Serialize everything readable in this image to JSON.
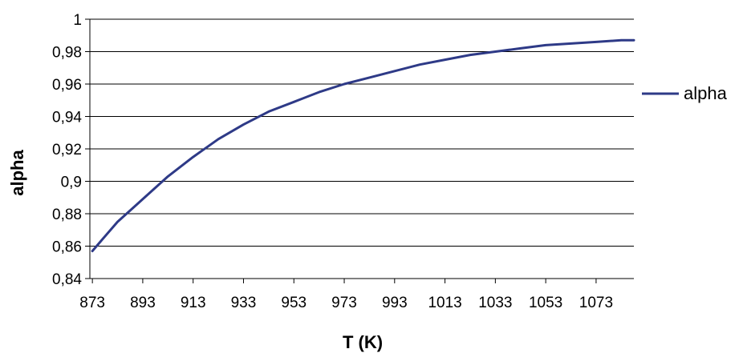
{
  "chart_data": {
    "type": "line",
    "title": "",
    "xlabel": "T (K)",
    "ylabel": "alpha",
    "xlim": [
      872,
      1088
    ],
    "ylim": [
      0.84,
      1.0
    ],
    "x_ticks": [
      873,
      893,
      913,
      933,
      953,
      973,
      993,
      1013,
      1033,
      1053,
      1073
    ],
    "x_tick_labels": [
      "873",
      "893",
      "913",
      "933",
      "953",
      "973",
      "993",
      "1013",
      "1033",
      "1053",
      "1073"
    ],
    "y_ticks": [
      0.84,
      0.86,
      0.88,
      0.9,
      0.92,
      0.94,
      0.96,
      0.98,
      1.0
    ],
    "y_tick_labels": [
      "0,84",
      "0,86",
      "0,88",
      "0,9",
      "0,92",
      "0,94",
      "0,96",
      "0,98",
      "1"
    ],
    "grid": "horizontal",
    "legend": {
      "position": "right",
      "entries": [
        "alpha"
      ]
    },
    "series": [
      {
        "name": "alpha",
        "color": "#2e3a87",
        "x": [
          873,
          878,
          883,
          893,
          903,
          913,
          923,
          933,
          943,
          953,
          963,
          973,
          983,
          993,
          1003,
          1013,
          1023,
          1033,
          1043,
          1053,
          1063,
          1073,
          1083,
          1088
        ],
        "y": [
          0.857,
          0.866,
          0.875,
          0.889,
          0.903,
          0.915,
          0.926,
          0.935,
          0.943,
          0.949,
          0.955,
          0.96,
          0.964,
          0.968,
          0.972,
          0.975,
          0.978,
          0.98,
          0.982,
          0.984,
          0.985,
          0.986,
          0.987,
          0.987
        ]
      }
    ]
  }
}
